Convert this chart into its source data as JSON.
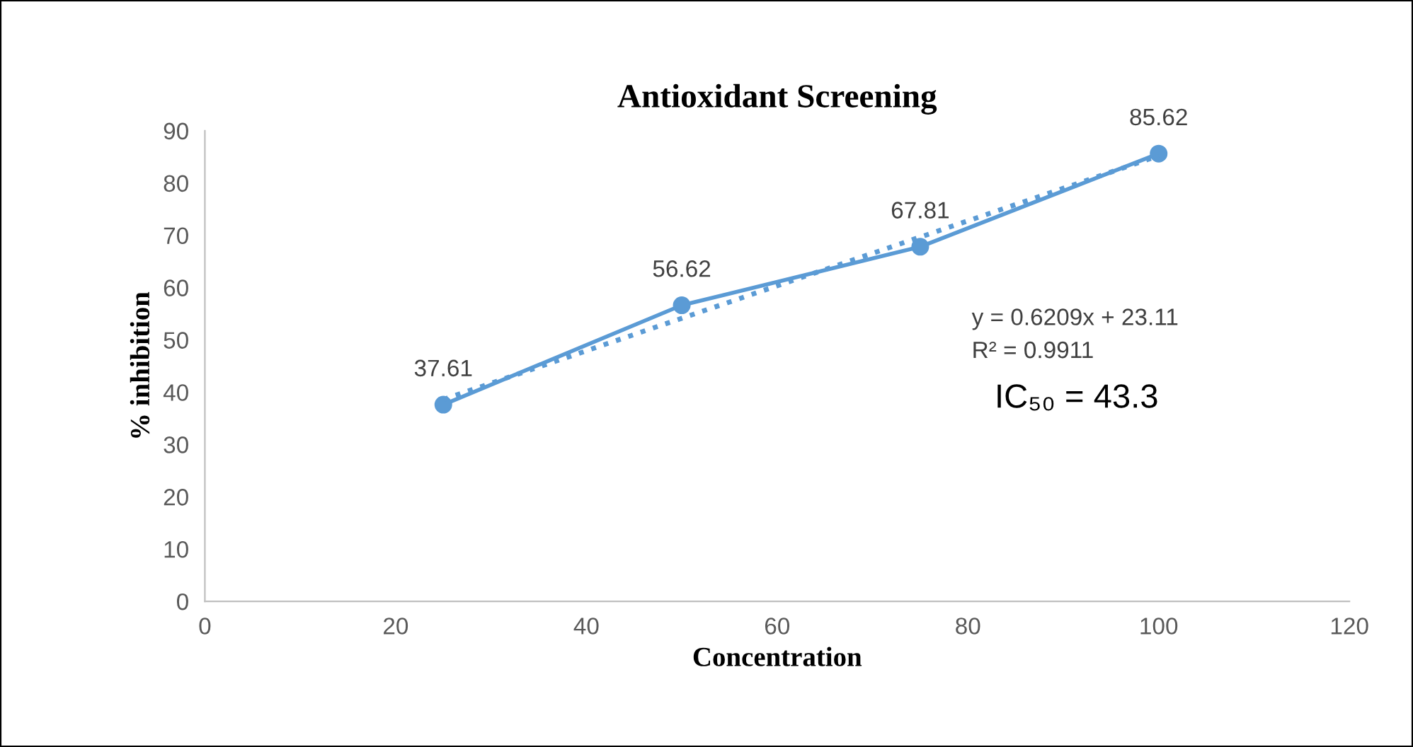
{
  "chart_data": {
    "type": "line",
    "title": "Antioxidant Screening",
    "xlabel": "Concentration",
    "ylabel": "% inhibition",
    "series": [
      {
        "color": "#5b9bd5",
        "x": [
          25,
          50,
          75,
          100
        ],
        "values": [
          37.61,
          56.62,
          67.81,
          85.62
        ],
        "value_labels": [
          "37.61",
          "56.62",
          "67.81",
          "85.62"
        ],
        "marker": "circle",
        "line_style": "solid"
      },
      {
        "color": "#5b9bd5",
        "x": [
          25,
          100
        ],
        "values": [
          38.6,
          85.2
        ],
        "marker": "none",
        "line_style": "dotted"
      }
    ],
    "annotations": [
      "y = 0.6209x + 23.11",
      "R² = 0.9911",
      "IC₅₀ = 43.3"
    ],
    "xlim": [
      0,
      120
    ],
    "xticks": [
      0,
      20,
      40,
      60,
      80,
      100,
      120
    ],
    "ylim": [
      0,
      90
    ],
    "yticks": [
      0,
      10,
      20,
      30,
      40,
      50,
      60,
      70,
      80,
      90
    ],
    "grid": false
  }
}
